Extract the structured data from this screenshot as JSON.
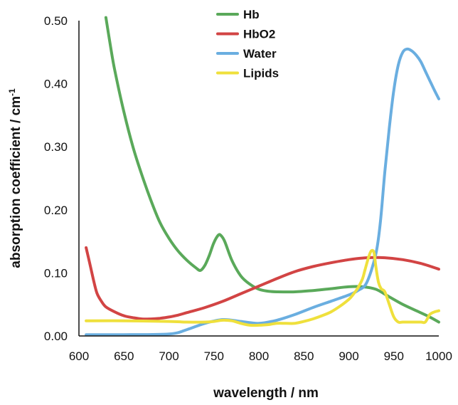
{
  "chart_data": {
    "type": "line",
    "xlabel": "wavelength / nm",
    "ylabel": "absorption coefficient / cm",
    "ylabel_superscript": "-1",
    "xlim": [
      600,
      1000
    ],
    "ylim": [
      0,
      0.5
    ],
    "xticks": [
      600,
      650,
      700,
      750,
      800,
      850,
      900,
      950,
      1000
    ],
    "yticks": [
      "0.00",
      "0.10",
      "0.20",
      "0.30",
      "0.40",
      "0.50"
    ],
    "yticks_values": [
      0,
      0.1,
      0.2,
      0.3,
      0.4,
      0.5
    ],
    "grid": false,
    "legend_position": "top-center",
    "series": [
      {
        "name": "Hb",
        "color": "#5aa95a",
        "x": [
          630,
          635,
          640,
          650,
          660,
          670,
          680,
          690,
          700,
          710,
          720,
          730,
          735,
          740,
          745,
          750,
          755,
          758,
          762,
          770,
          780,
          790,
          800,
          810,
          820,
          840,
          860,
          880,
          900,
          915,
          930,
          945,
          960,
          975,
          990,
          1000
        ],
        "y": [
          0.505,
          0.46,
          0.42,
          0.355,
          0.3,
          0.255,
          0.215,
          0.18,
          0.155,
          0.135,
          0.12,
          0.108,
          0.104,
          0.112,
          0.128,
          0.148,
          0.16,
          0.159,
          0.15,
          0.12,
          0.095,
          0.082,
          0.074,
          0.071,
          0.07,
          0.07,
          0.072,
          0.075,
          0.078,
          0.078,
          0.074,
          0.062,
          0.05,
          0.04,
          0.03,
          0.022
        ]
      },
      {
        "name": "HbO2",
        "color": "#d24444",
        "x": [
          608,
          612,
          616,
          620,
          625,
          630,
          640,
          650,
          660,
          670,
          680,
          690,
          700,
          710,
          720,
          740,
          760,
          780,
          800,
          820,
          840,
          860,
          880,
          900,
          920,
          940,
          960,
          980,
          1000
        ],
        "y": [
          0.14,
          0.115,
          0.09,
          0.068,
          0.055,
          0.046,
          0.038,
          0.032,
          0.029,
          0.027,
          0.027,
          0.028,
          0.03,
          0.033,
          0.037,
          0.045,
          0.055,
          0.067,
          0.079,
          0.091,
          0.102,
          0.11,
          0.116,
          0.121,
          0.124,
          0.124,
          0.121,
          0.115,
          0.106
        ]
      },
      {
        "name": "Water",
        "color": "#6aaee0",
        "x": [
          608,
          650,
          700,
          720,
          740,
          760,
          780,
          800,
          820,
          840,
          860,
          880,
          900,
          910,
          920,
          930,
          935,
          940,
          945,
          950,
          955,
          960,
          965,
          970,
          975,
          980,
          985,
          990,
          995,
          1000
        ],
        "y": [
          0.002,
          0.002,
          0.003,
          0.01,
          0.02,
          0.026,
          0.023,
          0.02,
          0.025,
          0.034,
          0.045,
          0.055,
          0.065,
          0.072,
          0.085,
          0.13,
          0.18,
          0.26,
          0.33,
          0.39,
          0.43,
          0.45,
          0.455,
          0.452,
          0.445,
          0.435,
          0.42,
          0.405,
          0.39,
          0.376
        ]
      },
      {
        "name": "Lipids",
        "color": "#efe03c",
        "x": [
          608,
          650,
          700,
          720,
          740,
          750,
          760,
          770,
          780,
          790,
          800,
          810,
          820,
          830,
          840,
          850,
          860,
          870,
          880,
          890,
          900,
          905,
          910,
          915,
          918,
          922,
          925,
          928,
          930,
          933,
          936,
          940,
          945,
          950,
          955,
          960,
          970,
          980,
          985,
          990,
          995,
          1000
        ],
        "y": [
          0.024,
          0.024,
          0.023,
          0.022,
          0.022,
          0.023,
          0.025,
          0.024,
          0.02,
          0.017,
          0.017,
          0.018,
          0.02,
          0.02,
          0.02,
          0.023,
          0.027,
          0.032,
          0.038,
          0.047,
          0.058,
          0.066,
          0.076,
          0.09,
          0.105,
          0.125,
          0.135,
          0.132,
          0.11,
          0.085,
          0.075,
          0.07,
          0.05,
          0.03,
          0.022,
          0.022,
          0.022,
          0.022,
          0.022,
          0.034,
          0.038,
          0.04
        ]
      }
    ]
  }
}
